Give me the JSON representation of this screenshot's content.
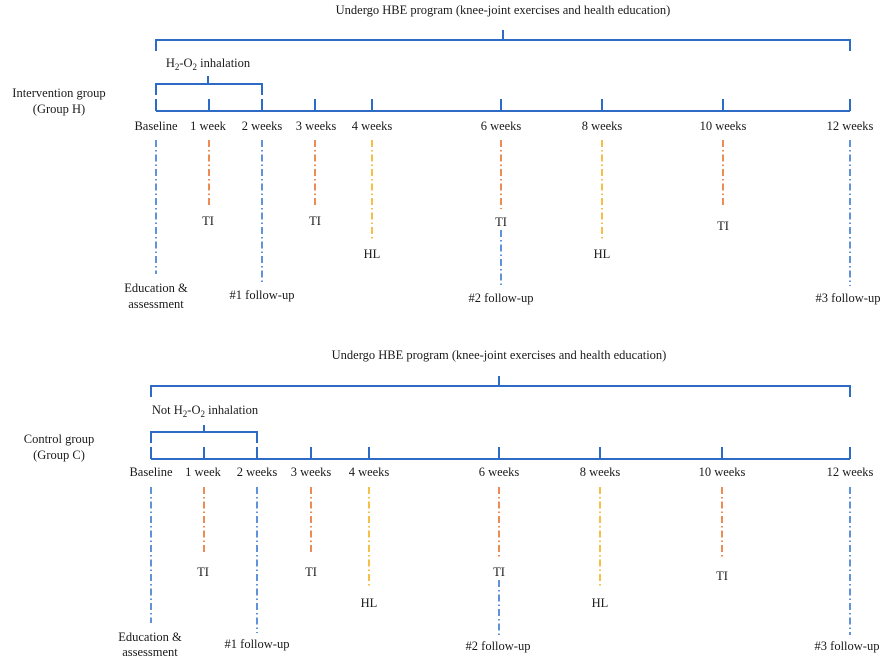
{
  "colors": {
    "axis": "#2e6bc6",
    "baseline_line": "#3a78d0",
    "ti_line": "#e8702a",
    "hl_line": "#f2b01e",
    "followup_line": "#3a78d0"
  },
  "panels": [
    {
      "id": "H",
      "program_label": "Undergo HBE program (knee-joint exercises and health education)",
      "group_name": "Intervention group",
      "group_code": "(Group H)",
      "inhalation": {
        "prefix": "",
        "main": "H",
        "sub1": "2",
        "mid": "-O",
        "sub2": "2",
        "suffix": " inhalation"
      },
      "timepoints": [
        "Baseline",
        "1 week",
        "2 weeks",
        "3 weeks",
        "4 weeks",
        "6 weeks",
        "8 weeks",
        "10 weeks",
        "12 weeks"
      ],
      "events": {
        "education_line1": "Education &",
        "education_line2": "assessment",
        "ti": "TI",
        "hl": "HL",
        "followup1": "#1 follow-up",
        "followup2": "#2 follow-up",
        "followup3": "#3 follow-up"
      }
    },
    {
      "id": "C",
      "program_label": "Undergo HBE program (knee-joint exercises and health education)",
      "group_name": "Control group",
      "group_code": "(Group C)",
      "inhalation": {
        "prefix": "Not ",
        "main": "H",
        "sub1": "2",
        "mid": "-O",
        "sub2": "2",
        "suffix": " inhalation"
      },
      "timepoints": [
        "Baseline",
        "1 week",
        "2 weeks",
        "3 weeks",
        "4 weeks",
        "6 weeks",
        "8 weeks",
        "10 weeks",
        "12 weeks"
      ],
      "events": {
        "education_line1": "Education &",
        "education_line2": "assessment",
        "ti": "TI",
        "hl": "HL",
        "followup1": "#1 follow-up",
        "followup2": "#2 follow-up",
        "followup3": "#3 follow-up"
      }
    }
  ]
}
